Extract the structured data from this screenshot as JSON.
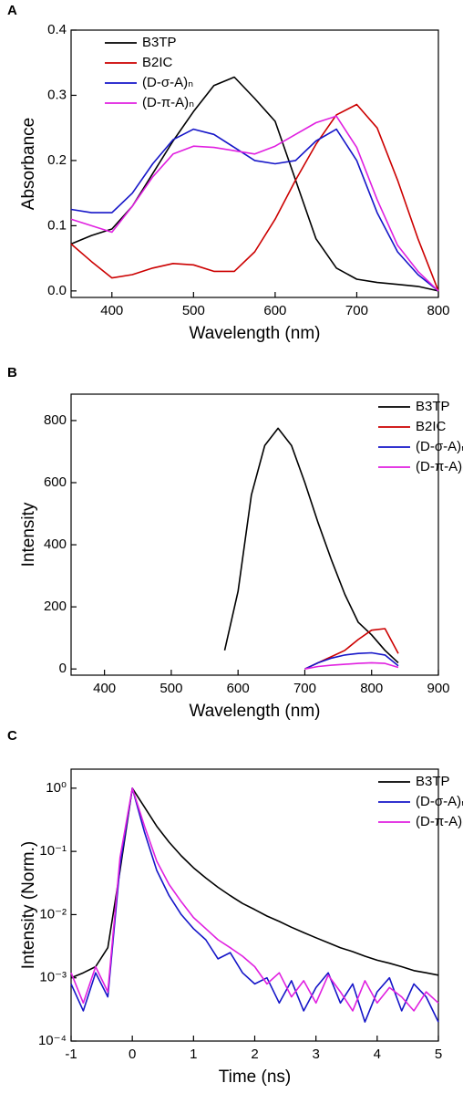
{
  "chart_data": [
    {
      "type": "line",
      "label": "A",
      "xlabel": "Wavelength (nm)",
      "ylabel": "Absorbance",
      "x": [
        350,
        375,
        400,
        425,
        450,
        475,
        500,
        525,
        550,
        575,
        600,
        625,
        650,
        675,
        700,
        725,
        750,
        775,
        800
      ],
      "series": [
        {
          "name": "B3TP",
          "color": "#000000",
          "values": [
            0.072,
            0.085,
            0.095,
            0.13,
            0.18,
            0.23,
            0.275,
            0.315,
            0.328,
            0.295,
            0.26,
            0.17,
            0.08,
            0.035,
            0.018,
            0.013,
            0.01,
            0.007,
            0.0
          ]
        },
        {
          "name": "B2IC",
          "color": "#cc0000",
          "values": [
            0.072,
            0.045,
            0.02,
            0.025,
            0.035,
            0.042,
            0.04,
            0.03,
            0.03,
            0.06,
            0.11,
            0.17,
            0.225,
            0.27,
            0.286,
            0.25,
            0.17,
            0.08,
            0.0
          ]
        },
        {
          "name": "(D-σ-A)ₙ",
          "color": "#1515c8",
          "values": [
            0.125,
            0.12,
            0.12,
            0.15,
            0.195,
            0.232,
            0.248,
            0.24,
            0.22,
            0.2,
            0.195,
            0.2,
            0.23,
            0.248,
            0.2,
            0.12,
            0.06,
            0.025,
            0.0
          ]
        },
        {
          "name": "(D-π-A)ₙ",
          "color": "#e020e0",
          "values": [
            0.11,
            0.1,
            0.09,
            0.13,
            0.175,
            0.21,
            0.222,
            0.22,
            0.215,
            0.21,
            0.222,
            0.24,
            0.258,
            0.268,
            0.22,
            0.14,
            0.07,
            0.03,
            0.0
          ]
        }
      ],
      "xlim": [
        350,
        800
      ],
      "ylim": [
        -0.01,
        0.4
      ],
      "xticks": [
        400,
        500,
        600,
        700,
        800
      ],
      "yticks": [
        {
          "value": 0,
          "label": "0.0"
        },
        0.1,
        0.2,
        0.3,
        0.4
      ],
      "legend": "upper left"
    },
    {
      "type": "line",
      "label": "B",
      "xlabel": "Wavelength (nm)",
      "ylabel": "Intensity",
      "x": [
        580,
        600,
        620,
        640,
        660,
        680,
        700,
        720,
        740,
        760,
        780,
        800,
        820,
        840,
        860
      ],
      "series": [
        {
          "name": "B3TP",
          "color": "#000000",
          "values": [
            60,
            250,
            560,
            720,
            775,
            720,
            600,
            470,
            350,
            240,
            150,
            110,
            60,
            20,
            null
          ]
        },
        {
          "name": "B2IC",
          "color": "#cc0000",
          "values": [
            null,
            null,
            null,
            null,
            null,
            null,
            0,
            20,
            40,
            60,
            95,
            125,
            130,
            50,
            null
          ]
        },
        {
          "name": "(D-σ-A)ₙ",
          "color": "#1515c8",
          "values": [
            null,
            null,
            null,
            null,
            null,
            null,
            0,
            20,
            35,
            45,
            50,
            52,
            45,
            10,
            null
          ]
        },
        {
          "name": "(D-π-A)ₙ",
          "color": "#e020e0",
          "values": [
            null,
            null,
            null,
            null,
            null,
            null,
            0,
            8,
            12,
            15,
            18,
            20,
            18,
            5,
            null
          ]
        }
      ],
      "xlim": [
        350,
        900
      ],
      "ylim": [
        -20,
        885
      ],
      "xticks": [
        400,
        500,
        600,
        700,
        800,
        900
      ],
      "yticks": [
        0,
        200,
        400,
        600,
        800
      ],
      "legend": "upper right"
    },
    {
      "type": "line",
      "label": "C",
      "xlabel": "Time (ns)",
      "ylabel": "Intensity (Norm.)",
      "log_y": true,
      "x": [
        -1,
        -0.8,
        -0.6,
        -0.4,
        -0.2,
        0,
        0.2,
        0.4,
        0.6,
        0.8,
        1,
        1.2,
        1.4,
        1.6,
        1.8,
        2,
        2.2,
        2.4,
        2.6,
        2.8,
        3,
        3.2,
        3.4,
        3.6,
        3.8,
        4,
        4.2,
        4.4,
        4.6,
        4.8,
        5
      ],
      "series": [
        {
          "name": "B3TP",
          "color": "#000000",
          "values": [
            0.001,
            0.0012,
            0.0015,
            0.003,
            0.05,
            1,
            0.5,
            0.25,
            0.14,
            0.085,
            0.055,
            0.038,
            0.027,
            0.02,
            0.015,
            0.012,
            0.0095,
            0.0078,
            0.0063,
            0.0052,
            0.0043,
            0.0036,
            0.003,
            0.0026,
            0.0022,
            0.0019,
            0.0017,
            0.0015,
            0.0013,
            0.0012,
            0.0011
          ]
        },
        {
          "name": "(D-σ-A)ₙ",
          "color": "#1515c8",
          "values": [
            0.0008,
            0.0003,
            0.0012,
            0.0005,
            0.06,
            1,
            0.2,
            0.05,
            0.02,
            0.01,
            0.006,
            0.004,
            0.002,
            0.0025,
            0.0012,
            0.0008,
            0.001,
            0.0004,
            0.0009,
            0.0003,
            0.0007,
            0.0012,
            0.0004,
            0.0008,
            0.0002,
            0.0006,
            0.001,
            0.0003,
            0.0008,
            0.0005,
            0.0002
          ]
        },
        {
          "name": "(D-π-A)ₙ",
          "color": "#e020e0",
          "values": [
            0.0012,
            0.0004,
            0.0015,
            0.0006,
            0.08,
            1,
            0.25,
            0.07,
            0.03,
            0.016,
            0.009,
            0.006,
            0.004,
            0.003,
            0.0022,
            0.0015,
            0.0008,
            0.0012,
            0.0005,
            0.0009,
            0.0004,
            0.0011,
            0.0006,
            0.0003,
            0.0009,
            0.0004,
            0.0007,
            0.0005,
            0.0003,
            0.0006,
            0.0004
          ]
        }
      ],
      "xlim": [
        -1,
        5
      ],
      "ylim": [
        0.0001,
        2
      ],
      "xticks": [
        -1,
        0,
        1,
        2,
        3,
        4,
        5
      ],
      "yticks": [
        {
          "value": 0.0001,
          "label": "10⁻⁴"
        },
        {
          "value": 0.001,
          "label": "10⁻³"
        },
        {
          "value": 0.01,
          "label": "10⁻²"
        },
        {
          "value": 0.1,
          "label": "10⁻¹"
        },
        {
          "value": 1,
          "label": "10⁰"
        }
      ],
      "legend": "upper right"
    }
  ]
}
